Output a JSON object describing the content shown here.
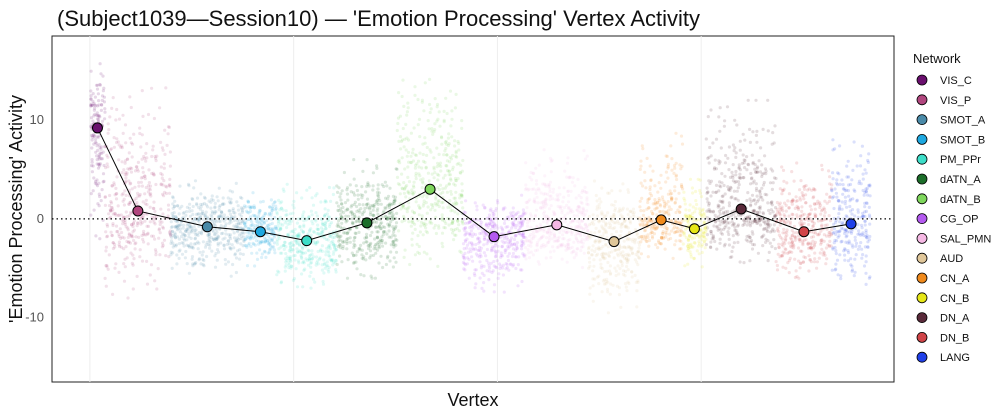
{
  "chart_data": {
    "type": "scatter",
    "title": "(Subject1039—Session10) — 'Emotion Processing' Vertex Activity",
    "xlabel": "Vertex",
    "ylabel": "'Emotion Processing' Activity",
    "ylim": [
      -16.5,
      18.5
    ],
    "xlim": [
      0,
      1
    ],
    "yticks": [
      {
        "value": 10,
        "label": "10"
      },
      {
        "value": 0,
        "label": "0"
      },
      {
        "value": -10,
        "label": "-10"
      }
    ],
    "reference_line": {
      "y": 0,
      "style": "dotted"
    },
    "grid": "faint vertical lines only",
    "legend": {
      "title": "Network",
      "position": "right"
    },
    "series": [
      {
        "name": "VIS_C",
        "color": "#6a0f6e",
        "x_range": [
          0.045,
          0.063
        ],
        "mean": 9.2,
        "spread_low": -2.0,
        "spread_high": 16.0
      },
      {
        "name": "VIS_P",
        "color": "#b0467e",
        "x_range": [
          0.063,
          0.141
        ],
        "mean": 0.8,
        "spread_low": -8.0,
        "spread_high": 14.0
      },
      {
        "name": "SMOT_A",
        "color": "#4a8aa8",
        "x_range": [
          0.141,
          0.228
        ],
        "mean": -0.8,
        "spread_low": -6.0,
        "spread_high": 4.0
      },
      {
        "name": "SMOT_B",
        "color": "#1ea8e0",
        "x_range": [
          0.228,
          0.267
        ],
        "mean": -1.3,
        "spread_low": -5.0,
        "spread_high": 3.0
      },
      {
        "name": "PM_PPr",
        "color": "#3dddc8",
        "x_range": [
          0.267,
          0.338
        ],
        "mean": -2.2,
        "spread_low": -7.0,
        "spread_high": 3.5
      },
      {
        "name": "dATN_A",
        "color": "#1c6e2a",
        "x_range": [
          0.338,
          0.41
        ],
        "mean": -0.4,
        "spread_low": -6.0,
        "spread_high": 6.0
      },
      {
        "name": "dATN_B",
        "color": "#7ed65c",
        "x_range": [
          0.41,
          0.488
        ],
        "mean": 3.0,
        "spread_low": -5.0,
        "spread_high": 15.0
      },
      {
        "name": "CG_OP",
        "color": "#b45af0",
        "x_range": [
          0.488,
          0.562
        ],
        "mean": -1.8,
        "spread_low": -8.0,
        "spread_high": 2.5
      },
      {
        "name": "SAL_PMN",
        "color": "#f5b8e4",
        "x_range": [
          0.562,
          0.637
        ],
        "mean": -0.6,
        "spread_low": -5.0,
        "spread_high": 7.0
      },
      {
        "name": "AUD",
        "color": "#e0c79a",
        "x_range": [
          0.637,
          0.698
        ],
        "mean": -2.3,
        "spread_low": -9.5,
        "spread_high": 4.0
      },
      {
        "name": "CN_A",
        "color": "#f08a1c",
        "x_range": [
          0.698,
          0.749
        ],
        "mean": -0.1,
        "spread_low": -4.0,
        "spread_high": 9.0
      },
      {
        "name": "CN_B",
        "color": "#e6e616",
        "x_range": [
          0.749,
          0.777
        ],
        "mean": -1.0,
        "spread_low": -5.0,
        "spread_high": 4.0
      },
      {
        "name": "DN_A",
        "color": "#5a2a3a",
        "x_range": [
          0.777,
          0.86
        ],
        "mean": 1.0,
        "spread_low": -4.5,
        "spread_high": 12.0
      },
      {
        "name": "DN_B",
        "color": "#d04448",
        "x_range": [
          0.86,
          0.926
        ],
        "mean": -1.3,
        "spread_low": -6.0,
        "spread_high": 6.0
      },
      {
        "name": "LANG",
        "color": "#2040e8",
        "x_range": [
          0.926,
          0.972
        ],
        "mean": -0.5,
        "spread_low": -7.0,
        "spread_high": 8.0
      }
    ]
  }
}
